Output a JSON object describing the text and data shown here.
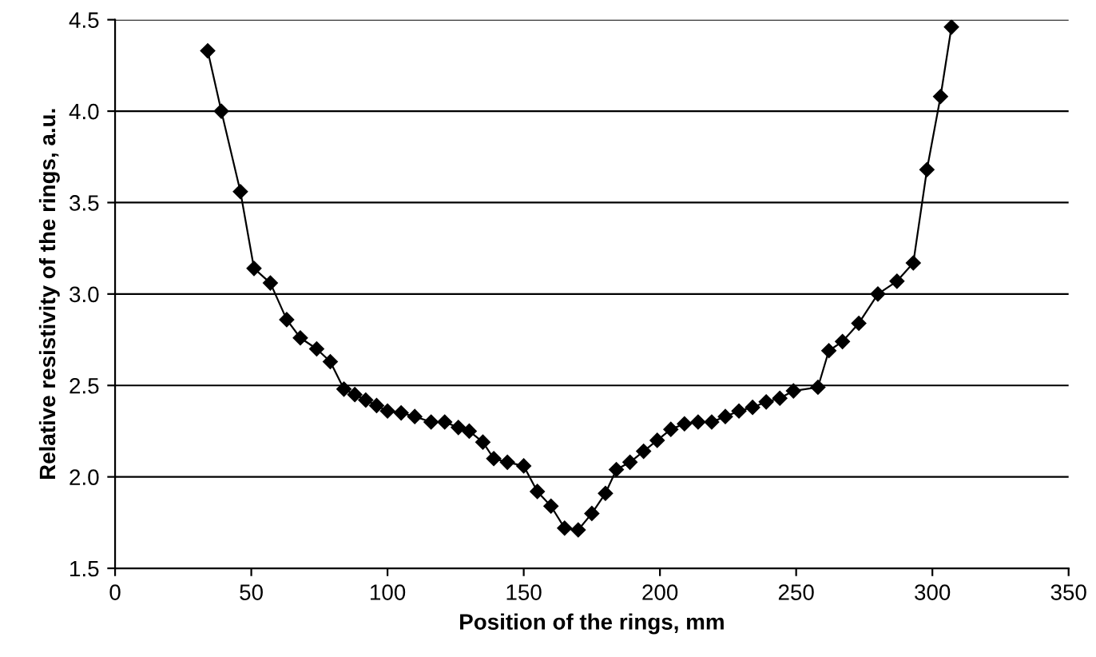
{
  "chart_data": {
    "type": "line",
    "xlabel": "Position of the rings, mm",
    "ylabel": "Relative resistivity of the rings, a.u.",
    "xlim": [
      0,
      350
    ],
    "xticks": [
      0,
      50,
      100,
      150,
      200,
      250,
      300,
      350
    ],
    "ylim": [
      1.5,
      4.5
    ],
    "yticks": [
      1.5,
      {
        "value": 2,
        "label": "2.0"
      },
      2.5,
      {
        "value": 3,
        "label": "3.0"
      },
      3.5,
      {
        "value": 4,
        "label": "4.0"
      },
      4.5
    ],
    "grid": "y",
    "marker": "diamond",
    "line_style": "solid",
    "legend": false,
    "x": [
      34,
      39,
      46,
      51,
      57,
      63,
      68,
      74,
      79,
      84,
      88,
      92,
      96,
      100,
      105,
      110,
      116,
      121,
      126,
      130,
      135,
      139,
      144,
      150,
      155,
      160,
      165,
      170,
      175,
      180,
      184,
      189,
      194,
      199,
      204,
      209,
      214,
      219,
      224,
      229,
      234,
      239,
      244,
      249,
      258,
      262,
      267,
      273,
      280,
      287,
      293,
      298,
      303,
      307
    ],
    "series": [
      {
        "color": "#000000",
        "values": [
          4.33,
          4.0,
          3.56,
          3.14,
          3.06,
          2.86,
          2.76,
          2.7,
          2.63,
          2.48,
          2.45,
          2.42,
          2.39,
          2.36,
          2.35,
          2.33,
          2.3,
          2.3,
          2.27,
          2.25,
          2.19,
          2.1,
          2.08,
          2.06,
          1.92,
          1.84,
          1.72,
          1.71,
          1.8,
          1.91,
          2.04,
          2.08,
          2.14,
          2.2,
          2.26,
          2.29,
          2.3,
          2.3,
          2.33,
          2.36,
          2.38,
          2.41,
          2.43,
          2.47,
          2.49,
          2.69,
          2.74,
          2.84,
          3.0,
          3.07,
          3.17,
          3.68,
          4.08,
          4.46
        ]
      }
    ]
  }
}
